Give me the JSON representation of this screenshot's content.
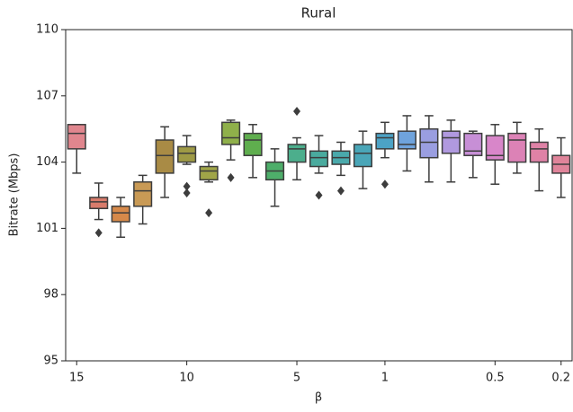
{
  "chart_data": {
    "type": "box",
    "title": "Rural",
    "x_label": "β",
    "y_label": "Bitrate (Mbps)",
    "categories": [
      "15",
      null,
      null,
      null,
      null,
      "10",
      null,
      null,
      null,
      null,
      "5",
      null,
      null,
      null,
      "1",
      null,
      null,
      null,
      null,
      "0.5",
      null,
      null,
      "0.2"
    ],
    "colors": [
      "#e0868e",
      "#d87b6b",
      "#d6894a",
      "#c99a55",
      "#a98b45",
      "#9e9a45",
      "#a0a548",
      "#8fb04a",
      "#5fae4e",
      "#4eae6a",
      "#4cae8c",
      "#4aab9e",
      "#4aa9ab",
      "#4aa6b8",
      "#4ca3c6",
      "#6fa3dc",
      "#9a9ee0",
      "#b099df",
      "#c78fd6",
      "#d886c9",
      "#dc82b6",
      "#df82a6",
      "#e0849a"
    ],
    "boxes": [
      {
        "whislo": 103.5,
        "q1": 104.6,
        "med": 105.3,
        "q3": 105.7,
        "whishi": 105.7,
        "fliers": []
      },
      {
        "whislo": 101.4,
        "q1": 101.9,
        "med": 102.2,
        "q3": 102.4,
        "whishi": 103.05,
        "fliers": [
          100.8
        ]
      },
      {
        "whislo": 100.6,
        "q1": 101.3,
        "med": 101.7,
        "q3": 102.0,
        "whishi": 102.4,
        "fliers": []
      },
      {
        "whislo": 101.2,
        "q1": 102.0,
        "med": 102.7,
        "q3": 103.1,
        "whishi": 103.4,
        "fliers": []
      },
      {
        "whislo": 102.4,
        "q1": 103.5,
        "med": 104.3,
        "q3": 105.0,
        "whishi": 105.6,
        "fliers": []
      },
      {
        "whislo": 103.9,
        "q1": 104.0,
        "med": 104.4,
        "q3": 104.7,
        "whishi": 105.2,
        "fliers": [
          102.9,
          102.6
        ]
      },
      {
        "whislo": 103.1,
        "q1": 103.2,
        "med": 103.6,
        "q3": 103.8,
        "whishi": 104.0,
        "fliers": [
          101.7
        ]
      },
      {
        "whislo": 104.1,
        "q1": 104.8,
        "med": 105.1,
        "q3": 105.8,
        "whishi": 105.9,
        "fliers": [
          103.3
        ]
      },
      {
        "whislo": 103.3,
        "q1": 104.3,
        "med": 105.0,
        "q3": 105.3,
        "whishi": 105.7,
        "fliers": []
      },
      {
        "whislo": 102.0,
        "q1": 103.2,
        "med": 103.6,
        "q3": 104.0,
        "whishi": 104.6,
        "fliers": []
      },
      {
        "whislo": 103.2,
        "q1": 104.0,
        "med": 104.6,
        "q3": 104.8,
        "whishi": 105.1,
        "fliers": [
          106.3
        ]
      },
      {
        "whislo": 103.5,
        "q1": 103.8,
        "med": 104.2,
        "q3": 104.5,
        "whishi": 105.2,
        "fliers": [
          102.5
        ]
      },
      {
        "whislo": 103.4,
        "q1": 103.9,
        "med": 104.2,
        "q3": 104.5,
        "whishi": 104.9,
        "fliers": [
          102.7
        ]
      },
      {
        "whislo": 102.8,
        "q1": 103.8,
        "med": 104.4,
        "q3": 104.8,
        "whishi": 105.4,
        "fliers": []
      },
      {
        "whislo": 104.2,
        "q1": 104.6,
        "med": 105.1,
        "q3": 105.3,
        "whishi": 105.8,
        "fliers": [
          103.0
        ]
      },
      {
        "whislo": 103.6,
        "q1": 104.6,
        "med": 104.8,
        "q3": 105.4,
        "whishi": 106.1,
        "fliers": []
      },
      {
        "whislo": 103.1,
        "q1": 104.2,
        "med": 104.9,
        "q3": 105.5,
        "whishi": 106.1,
        "fliers": []
      },
      {
        "whislo": 103.1,
        "q1": 104.4,
        "med": 105.1,
        "q3": 105.4,
        "whishi": 105.9,
        "fliers": []
      },
      {
        "whislo": 103.3,
        "q1": 104.3,
        "med": 104.5,
        "q3": 105.3,
        "whishi": 105.4,
        "fliers": []
      },
      {
        "whislo": 103.0,
        "q1": 104.1,
        "med": 104.3,
        "q3": 105.2,
        "whishi": 105.7,
        "fliers": []
      },
      {
        "whislo": 103.5,
        "q1": 104.0,
        "med": 105.0,
        "q3": 105.3,
        "whishi": 105.8,
        "fliers": []
      },
      {
        "whislo": 102.7,
        "q1": 104.0,
        "med": 104.6,
        "q3": 104.9,
        "whishi": 105.5,
        "fliers": []
      },
      {
        "whislo": 102.4,
        "q1": 103.5,
        "med": 103.9,
        "q3": 104.3,
        "whishi": 105.1,
        "fliers": []
      }
    ],
    "ylim": [
      95,
      110
    ],
    "yticks": [
      95,
      98,
      101,
      104,
      107,
      110
    ]
  }
}
